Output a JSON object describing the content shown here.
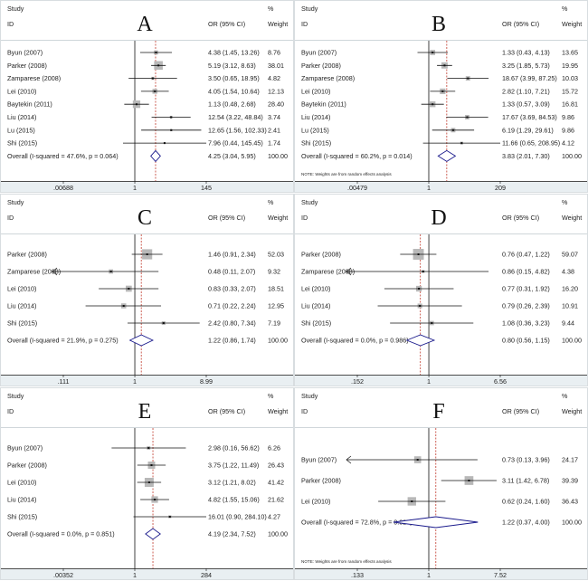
{
  "chart_data": [
    {
      "type": "forest",
      "panel_label": "A",
      "scale": "log",
      "headers": {
        "study": "Study",
        "id": "ID",
        "or": "OR (95% CI)",
        "pct": "%",
        "weight": "Weight"
      },
      "studies": [
        {
          "id": "Byun (2007)",
          "or": 4.38,
          "lo": 1.45,
          "hi": 13.26,
          "or_text": "4.38 (1.45, 13.26)",
          "weight": "8.76"
        },
        {
          "id": "Parker (2008)",
          "or": 5.19,
          "lo": 3.12,
          "hi": 8.63,
          "or_text": "5.19 (3.12, 8.63)",
          "weight": "38.01"
        },
        {
          "id": "Zamparese (2008)",
          "or": 3.5,
          "lo": 0.65,
          "hi": 18.95,
          "or_text": "3.50 (0.65, 18.95)",
          "weight": "4.82"
        },
        {
          "id": "Lei (2010)",
          "or": 4.05,
          "lo": 1.54,
          "hi": 10.64,
          "or_text": "4.05 (1.54, 10.64)",
          "weight": "12.13"
        },
        {
          "id": "Baytekin (2011)",
          "or": 1.13,
          "lo": 0.48,
          "hi": 2.68,
          "or_text": "1.13 (0.48, 2.68)",
          "weight": "28.40"
        },
        {
          "id": "Liu (2014)",
          "or": 12.54,
          "lo": 3.22,
          "hi": 48.84,
          "or_text": "12.54 (3.22, 48.84)",
          "weight": "3.74"
        },
        {
          "id": "Lu (2015)",
          "or": 12.65,
          "lo": 1.56,
          "hi": 102.33,
          "or_text": "12.65 (1.56, 102.33)",
          "weight": "2.41"
        },
        {
          "id": "Shi (2015)",
          "or": 7.96,
          "lo": 0.44,
          "hi": 145.45,
          "or_text": "7.96 (0.44, 145.45)",
          "weight": "1.74"
        }
      ],
      "overall": {
        "label": "Overall  (I-squared = 47.6%, p = 0.064)",
        "or": 4.25,
        "lo": 3.04,
        "hi": 5.95,
        "or_text": "4.25 (3.04, 5.95)",
        "weight": "100.00"
      },
      "ticks": [
        ".00688",
        "1",
        "145"
      ],
      "xlim": [
        0.00688,
        145
      ],
      "note": ""
    },
    {
      "type": "forest",
      "panel_label": "B",
      "scale": "log",
      "headers": {
        "study": "Study",
        "id": "ID",
        "or": "OR (95% CI)",
        "pct": "%",
        "weight": "Weight"
      },
      "studies": [
        {
          "id": "Byun (2007)",
          "or": 1.33,
          "lo": 0.43,
          "hi": 4.13,
          "or_text": "1.33 (0.43, 4.13)",
          "weight": "13.65"
        },
        {
          "id": "Parker (2008)",
          "or": 3.25,
          "lo": 1.85,
          "hi": 5.73,
          "or_text": "3.25 (1.85, 5.73)",
          "weight": "19.95"
        },
        {
          "id": "Zamparese (2008)",
          "or": 18.67,
          "lo": 3.99,
          "hi": 87.25,
          "or_text": "18.67 (3.99, 87.25)",
          "weight": "10.03"
        },
        {
          "id": "Lei (2010)",
          "or": 2.82,
          "lo": 1.1,
          "hi": 7.21,
          "or_text": "2.82 (1.10, 7.21)",
          "weight": "15.72"
        },
        {
          "id": "Baytekin (2011)",
          "or": 1.33,
          "lo": 0.57,
          "hi": 3.09,
          "or_text": "1.33 (0.57, 3.09)",
          "weight": "16.81"
        },
        {
          "id": "Liu (2014)",
          "or": 17.67,
          "lo": 3.69,
          "hi": 84.53,
          "or_text": "17.67 (3.69, 84.53)",
          "weight": "9.86"
        },
        {
          "id": "Lu (2015)",
          "or": 6.19,
          "lo": 1.29,
          "hi": 29.61,
          "or_text": "6.19 (1.29, 29.61)",
          "weight": "9.86"
        },
        {
          "id": "Shi (2015)",
          "or": 11.66,
          "lo": 0.65,
          "hi": 208.95,
          "or_text": "11.66 (0.65, 208.95)",
          "weight": "4.12"
        }
      ],
      "overall": {
        "label": "Overall  (I-squared = 60.2%, p = 0.014)",
        "or": 3.83,
        "lo": 2.01,
        "hi": 7.3,
        "or_text": "3.83 (2.01, 7.30)",
        "weight": "100.00"
      },
      "ticks": [
        ".00479",
        "1",
        "209"
      ],
      "xlim": [
        0.00479,
        209
      ],
      "note": "NOTE: Weights are from random effects analysis"
    },
    {
      "type": "forest",
      "panel_label": "C",
      "scale": "log",
      "headers": {
        "study": "Study",
        "id": "ID",
        "or": "OR (95% CI)",
        "pct": "%",
        "weight": "Weight"
      },
      "studies": [
        {
          "id": "Parker (2008)",
          "or": 1.46,
          "lo": 0.91,
          "hi": 2.34,
          "or_text": "1.46 (0.91, 2.34)",
          "weight": "52.03"
        },
        {
          "id": "Zamparese (2008)",
          "or": 0.48,
          "lo": 0.11,
          "hi": 2.07,
          "or_text": "0.48 (0.11, 2.07)",
          "weight": "9.32"
        },
        {
          "id": "Lei (2010)",
          "or": 0.83,
          "lo": 0.33,
          "hi": 2.07,
          "or_text": "0.83 (0.33, 2.07)",
          "weight": "18.51"
        },
        {
          "id": "Liu (2014)",
          "or": 0.71,
          "lo": 0.22,
          "hi": 2.24,
          "or_text": "0.71 (0.22, 2.24)",
          "weight": "12.95"
        },
        {
          "id": "Shi (2015)",
          "or": 2.42,
          "lo": 0.8,
          "hi": 7.34,
          "or_text": "2.42 (0.80, 7.34)",
          "weight": "7.19"
        }
      ],
      "overall": {
        "label": "Overall  (I-squared = 21.9%, p = 0.275)",
        "or": 1.22,
        "lo": 0.86,
        "hi": 1.74,
        "or_text": "1.22 (0.86, 1.74)",
        "weight": "100.00"
      },
      "ticks": [
        ".111",
        "1",
        "8.99"
      ],
      "xlim": [
        0.111,
        8.99
      ],
      "note": ""
    },
    {
      "type": "forest",
      "panel_label": "D",
      "scale": "log",
      "headers": {
        "study": "Study",
        "id": "ID",
        "or": "OR (95% CI)",
        "pct": "%",
        "weight": "Weight"
      },
      "studies": [
        {
          "id": "Parker (2008)",
          "or": 0.76,
          "lo": 0.47,
          "hi": 1.22,
          "or_text": "0.76 (0.47, 1.22)",
          "weight": "59.07"
        },
        {
          "id": "Zamparese (2008)",
          "or": 0.86,
          "lo": 0.15,
          "hi": 4.82,
          "or_text": "0.86 (0.15, 4.82)",
          "weight": "4.38"
        },
        {
          "id": "Lei (2010)",
          "or": 0.77,
          "lo": 0.31,
          "hi": 1.92,
          "or_text": "0.77 (0.31, 1.92)",
          "weight": "16.20"
        },
        {
          "id": "Liu (2014)",
          "or": 0.79,
          "lo": 0.26,
          "hi": 2.39,
          "or_text": "0.79 (0.26, 2.39)",
          "weight": "10.91"
        },
        {
          "id": "Shi (2015)",
          "or": 1.08,
          "lo": 0.36,
          "hi": 3.23,
          "or_text": "1.08 (0.36, 3.23)",
          "weight": "9.44"
        }
      ],
      "overall": {
        "label": "Overall  (I-squared = 0.0%, p = 0.986)",
        "or": 0.8,
        "lo": 0.56,
        "hi": 1.15,
        "or_text": "0.80 (0.56, 1.15)",
        "weight": "100.00"
      },
      "ticks": [
        ".152",
        "1",
        "6.56"
      ],
      "xlim": [
        0.152,
        6.56
      ],
      "note": ""
    },
    {
      "type": "forest",
      "panel_label": "E",
      "scale": "log",
      "headers": {
        "study": "Study",
        "id": "ID",
        "or": "OR (95% CI)",
        "pct": "%",
        "weight": "Weight"
      },
      "studies": [
        {
          "id": "Byun (2007)",
          "or": 2.98,
          "lo": 0.16,
          "hi": 56.62,
          "or_text": "2.98 (0.16, 56.62)",
          "weight": "6.26"
        },
        {
          "id": "Parker (2008)",
          "or": 3.75,
          "lo": 1.22,
          "hi": 11.49,
          "or_text": "3.75 (1.22, 11.49)",
          "weight": "26.43"
        },
        {
          "id": "Lei (2010)",
          "or": 3.12,
          "lo": 1.21,
          "hi": 8.02,
          "or_text": "3.12 (1.21, 8.02)",
          "weight": "41.42"
        },
        {
          "id": "Liu (2014)",
          "or": 4.82,
          "lo": 1.55,
          "hi": 15.06,
          "or_text": "4.82 (1.55, 15.06)",
          "weight": "21.62"
        },
        {
          "id": "Shi (2015)",
          "or": 16.01,
          "lo": 0.9,
          "hi": 284.1,
          "or_text": "16.01 (0.90, 284.10)",
          "weight": "4.27"
        }
      ],
      "overall": {
        "label": "Overall  (I-squared = 0.0%, p = 0.851)",
        "or": 4.19,
        "lo": 2.34,
        "hi": 7.52,
        "or_text": "4.19 (2.34, 7.52)",
        "weight": "100.00"
      },
      "ticks": [
        ".00352",
        "1",
        "284"
      ],
      "xlim": [
        0.00352,
        284
      ],
      "note": ""
    },
    {
      "type": "forest",
      "panel_label": "F",
      "scale": "log",
      "headers": {
        "study": "Study",
        "id": "ID",
        "or": "OR (95% CI)",
        "pct": "%",
        "weight": "Weight"
      },
      "studies": [
        {
          "id": "Byun (2007)",
          "or": 0.73,
          "lo": 0.13,
          "hi": 3.96,
          "or_text": "0.73 (0.13, 3.96)",
          "weight": "24.17"
        },
        {
          "id": "Parker (2008)",
          "or": 3.11,
          "lo": 1.42,
          "hi": 6.78,
          "or_text": "3.11 (1.42, 6.78)",
          "weight": "39.39"
        },
        {
          "id": "Lei (2010)",
          "or": 0.62,
          "lo": 0.24,
          "hi": 1.6,
          "or_text": "0.62 (0.24, 1.60)",
          "weight": "36.43"
        }
      ],
      "overall": {
        "label": "Overall  (I-squared = 72.8%, p = 0.025)",
        "or": 1.22,
        "lo": 0.37,
        "hi": 4.0,
        "or_text": "1.22 (0.37, 4.00)",
        "weight": "100.00"
      },
      "ticks": [
        ".133",
        "1",
        "7.52"
      ],
      "xlim": [
        0.133,
        7.52
      ],
      "note": "NOTE: Weights are from random effects analysis"
    }
  ],
  "colors": {
    "box": "#b8b8b8",
    "diamond": "#1a1a8c",
    "overall_line": "#c0392b",
    "axis_band": "#e9eff2",
    "line": "#111111"
  }
}
